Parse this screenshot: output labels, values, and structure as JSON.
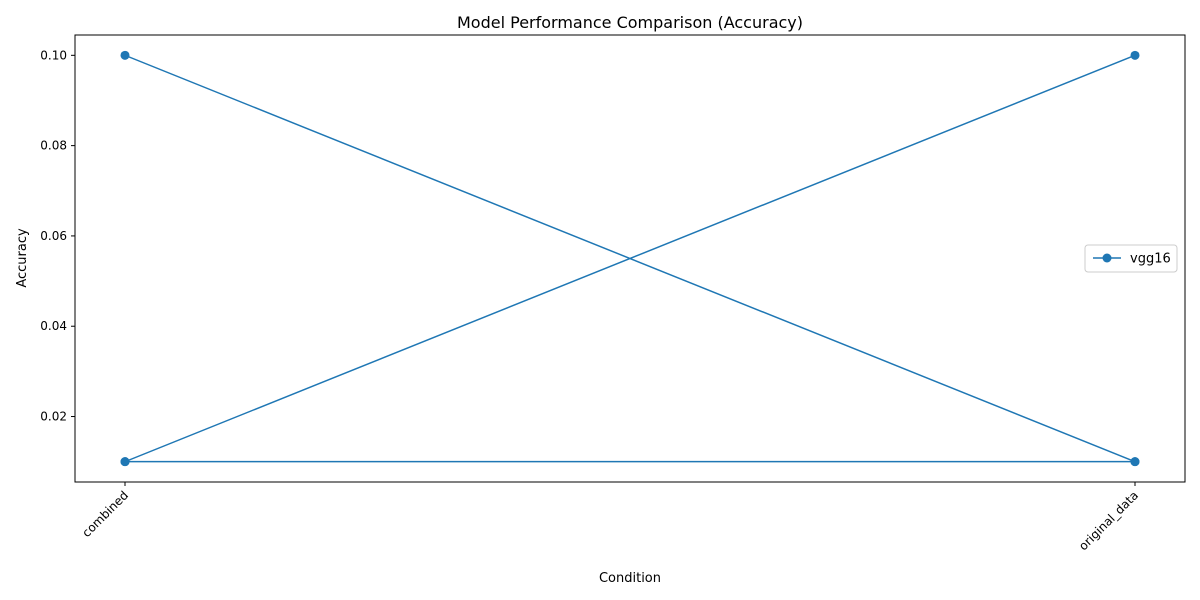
{
  "chart_data": {
    "type": "line",
    "title": "Model Performance Comparison (Accuracy)",
    "xlabel": "Condition",
    "ylabel": "Accuracy",
    "categories": [
      "combined",
      "original_data"
    ],
    "x": [
      "combined",
      "original_data",
      "combined",
      "original_data",
      "combined",
      "original_data"
    ],
    "ylim": [
      0.0055,
      0.1045
    ],
    "yticks": [
      0.02,
      0.04,
      0.06,
      0.08,
      0.1
    ],
    "ytick_labels": [
      "0.02",
      "0.04",
      "0.06",
      "0.08",
      "0.10"
    ],
    "xtick_rotation": 45,
    "grid": false,
    "legend_position": "center-right",
    "series": [
      {
        "name": "vgg16",
        "color": "#1f77b4",
        "marker": "circle",
        "values": [
          0.01,
          0.01,
          0.1,
          0.01,
          0.01,
          0.1
        ]
      }
    ]
  }
}
